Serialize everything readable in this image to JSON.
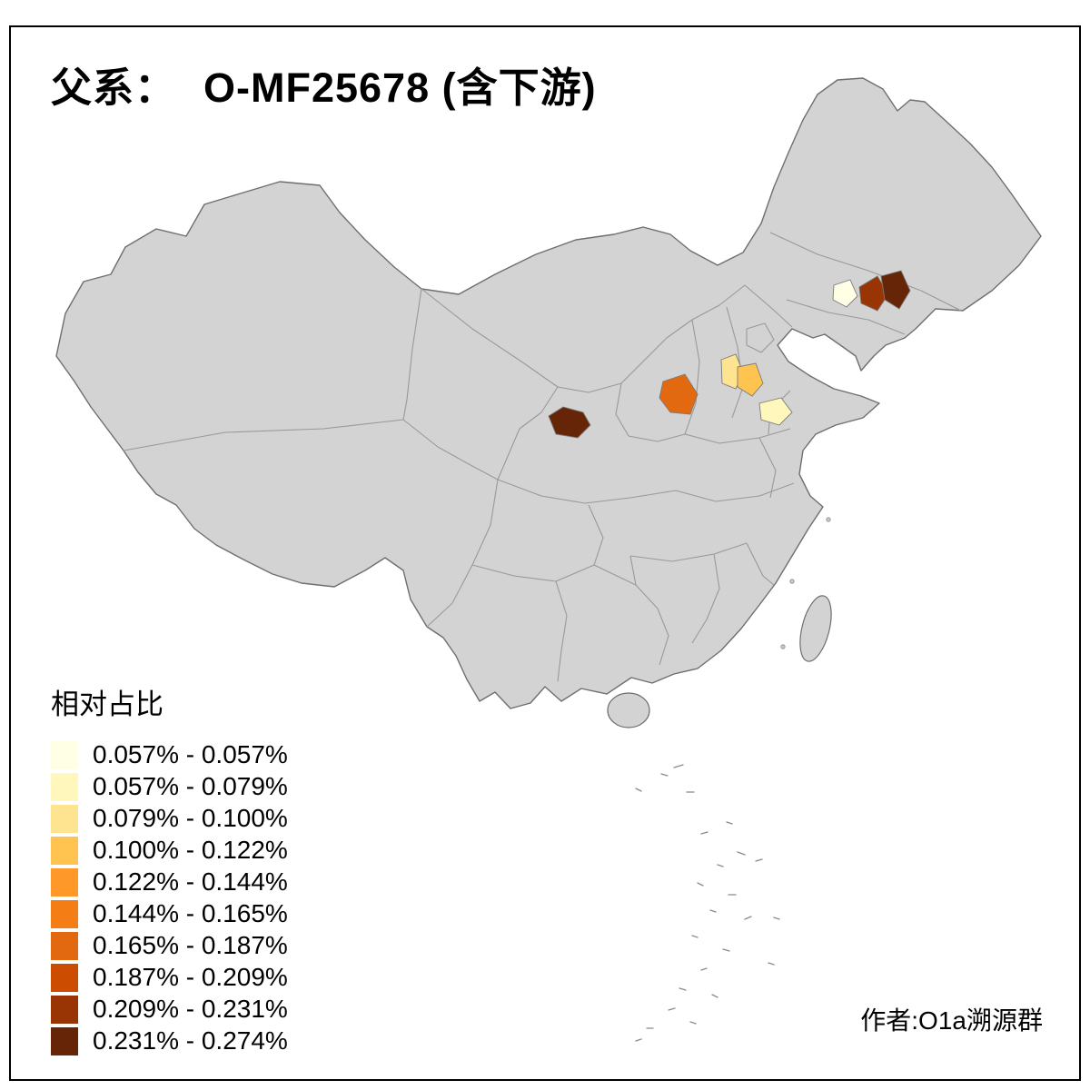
{
  "title": {
    "prefix": "父系：",
    "main": "O-MF25678 (含下游)"
  },
  "legend": {
    "title": "相对占比",
    "classes": [
      {
        "label": "0.057% - 0.057%",
        "color": "#FFFFE5"
      },
      {
        "label": "0.057% - 0.079%",
        "color": "#FFF7BC"
      },
      {
        "label": "0.079% - 0.100%",
        "color": "#FEE391"
      },
      {
        "label": "0.100% - 0.122%",
        "color": "#FEC44F"
      },
      {
        "label": "0.122% - 0.144%",
        "color": "#FE9929"
      },
      {
        "label": "0.144% - 0.165%",
        "color": "#F57D15"
      },
      {
        "label": "0.165% - 0.187%",
        "color": "#E36911"
      },
      {
        "label": "0.187% - 0.209%",
        "color": "#CC4C02"
      },
      {
        "label": "0.209% - 0.231%",
        "color": "#993404"
      },
      {
        "label": "0.231% - 0.274%",
        "color": "#662506"
      }
    ]
  },
  "credit": {
    "text": "作者:O1a溯源群"
  },
  "map": {
    "base_fill": "#D3D3D3",
    "outline_color": "#6E6E6E",
    "province_border_color": "#999999",
    "regions": [
      {
        "id": "gansu-south",
        "color": "#662506",
        "class": "0.231% - 0.274%"
      },
      {
        "id": "shaanxi-north",
        "color": "#E36911",
        "class": "0.165% - 0.187%"
      },
      {
        "id": "shanxi",
        "color": "#FEE391",
        "class": "0.079% - 0.100%"
      },
      {
        "id": "hebei-south",
        "color": "#FEC44F",
        "class": "0.100% - 0.122%"
      },
      {
        "id": "shandong-west",
        "color": "#FFF7BC",
        "class": "0.057% - 0.079%"
      },
      {
        "id": "liaoning-west",
        "color": "#FFFFE5",
        "class": "0.057% - 0.057%"
      },
      {
        "id": "liaoning-central",
        "color": "#993404",
        "class": "0.209% - 0.231%"
      },
      {
        "id": "liaoning-east",
        "color": "#662506",
        "class": "0.231% - 0.274%"
      }
    ]
  }
}
